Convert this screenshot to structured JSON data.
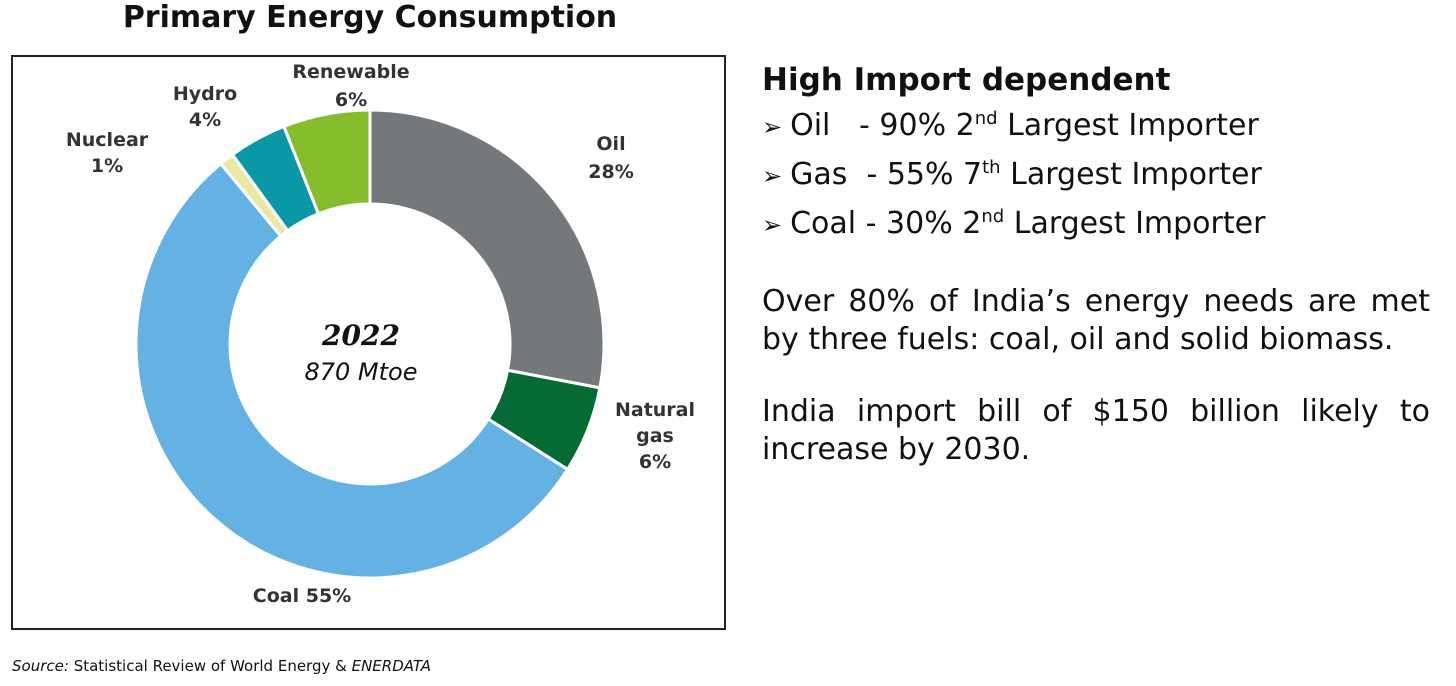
{
  "chart_data": {
    "type": "pie",
    "variant": "donut",
    "title": "Primary Energy Consumption",
    "center_label": {
      "year": "2022",
      "total": "870 Mtoe"
    },
    "slices": [
      {
        "name": "Oil",
        "label_name": "Oil",
        "label_value": "28%",
        "value": 28,
        "color": "#75787b"
      },
      {
        "name": "Natural gas",
        "label_name": "Natural gas",
        "label_value": "6%",
        "value": 6,
        "color": "#066a35"
      },
      {
        "name": "Coal",
        "label_name": "Coal 55%",
        "label_value": "",
        "value": 55,
        "color": "#63b2e3"
      },
      {
        "name": "Nuclear",
        "label_name": "Nuclear",
        "label_value": "1%",
        "value": 1,
        "color": "#e8eaa3"
      },
      {
        "name": "Hydro",
        "label_name": "Hydro",
        "label_value": "4%",
        "value": 4,
        "color": "#0a97a6"
      },
      {
        "name": "Renewable",
        "label_name": "Renewable",
        "label_value": "6%",
        "value": 6,
        "color": "#86bd2c"
      }
    ],
    "source": {
      "prefix": "Source:",
      "text": "Statistical Review of World Energy & ",
      "italic_suffix": "ENERDATA"
    }
  },
  "panel": {
    "heading": "High Import dependent",
    "bullets": [
      {
        "arrow": "➢",
        "fuel": "Oil",
        "gap": "   - ",
        "pct": "90%",
        "rank_num": "2",
        "rank_sup": "nd",
        "rank_text": "Largest Importer"
      },
      {
        "arrow": "➢",
        "fuel": "Gas",
        "gap": "  - ",
        "pct": "55%",
        "rank_num": "7",
        "rank_sup": "th",
        "rank_text": "Largest Importer"
      },
      {
        "arrow": "➢",
        "fuel": "Coal",
        "gap": " - ",
        "pct": "30%",
        "rank_num": "2",
        "rank_sup": "nd",
        "rank_text": "Largest Importer"
      }
    ],
    "paragraph1": "Over 80% of India’s energy needs are met by three fuels: coal, oil and solid biomass.",
    "paragraph2": "India import bill of $150 billion likely to increase by 2030."
  }
}
